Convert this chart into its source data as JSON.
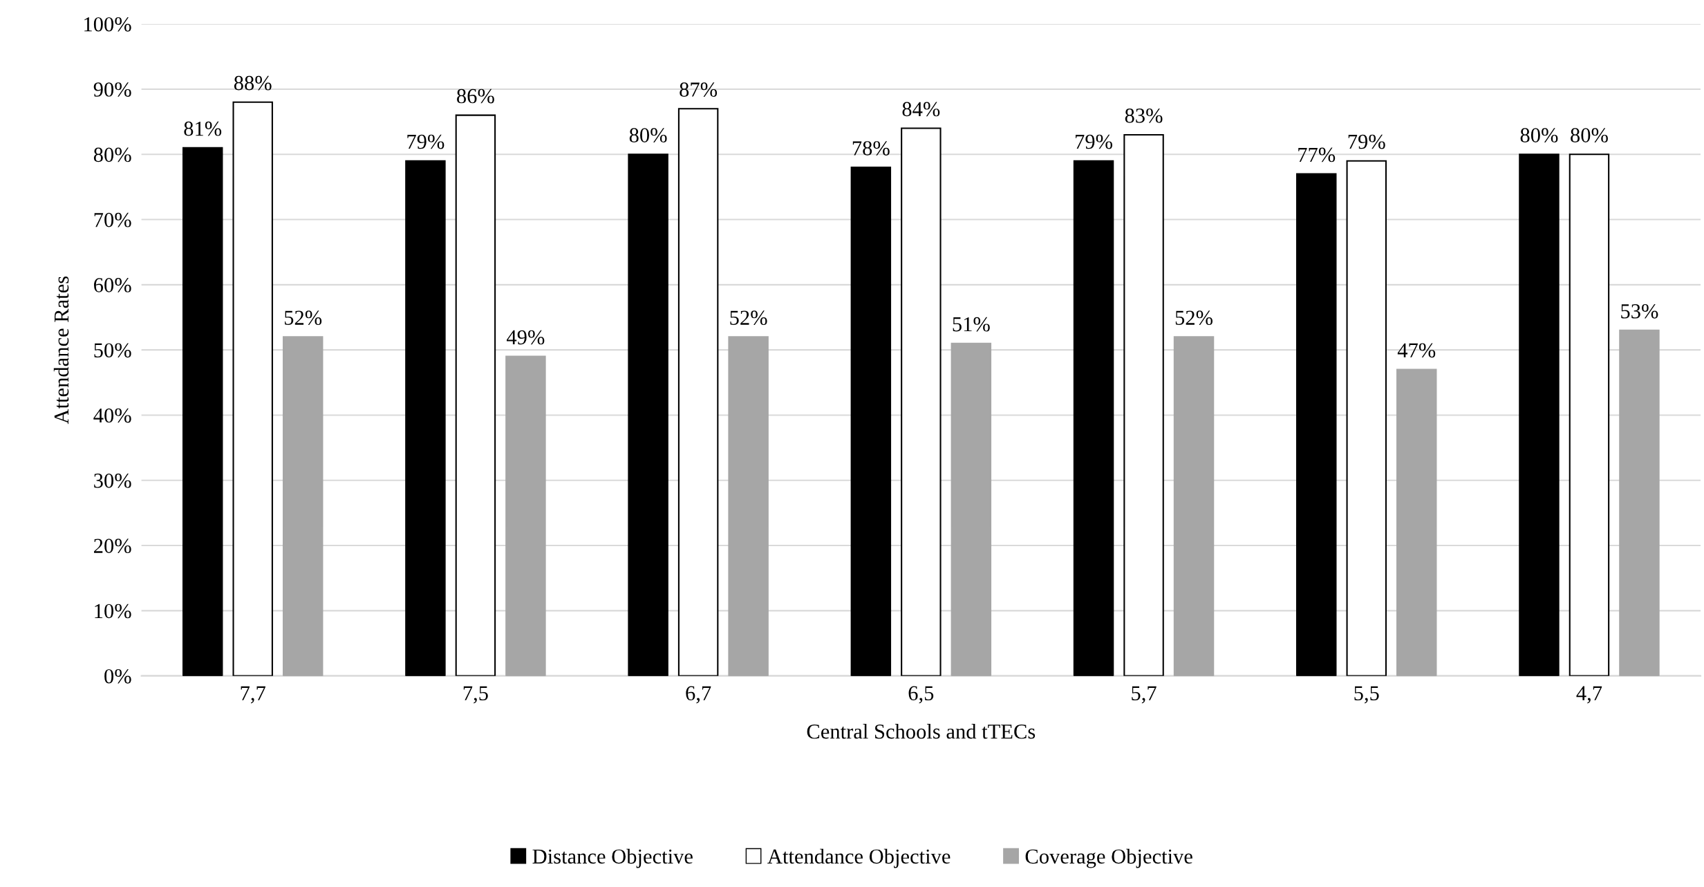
{
  "chart_data": {
    "type": "bar",
    "xlabel": "Central Schools and tTECs",
    "ylabel": "Attendance Rates",
    "categories": [
      "7,7",
      "7,5",
      "6,7",
      "6,5",
      "5,7",
      "5,5",
      "4,7"
    ],
    "series": [
      {
        "name": "Distance Objective",
        "color": "#000000",
        "values": [
          81,
          79,
          80,
          78,
          79,
          77,
          80
        ],
        "value_labels": [
          "81%",
          "79%",
          "80%",
          "78%",
          "79%",
          "77%",
          "80%"
        ]
      },
      {
        "name": "Attendance Objective",
        "color": "#ffffff",
        "values": [
          88,
          86,
          87,
          84,
          83,
          79,
          80
        ],
        "value_labels": [
          "88%",
          "86%",
          "87%",
          "84%",
          "83%",
          "79%",
          "80%"
        ]
      },
      {
        "name": "Coverage Objective",
        "color": "#a6a6a6",
        "values": [
          52,
          49,
          52,
          51,
          52,
          47,
          53
        ],
        "value_labels": [
          "52%",
          "49%",
          "52%",
          "51%",
          "52%",
          "47%",
          "53%"
        ]
      }
    ],
    "ylim": [
      0,
      100
    ],
    "yticks": [
      {
        "value": 0,
        "label": "0%"
      },
      {
        "value": 10,
        "label": "10%"
      },
      {
        "value": 20,
        "label": "20%"
      },
      {
        "value": 30,
        "label": "30%"
      },
      {
        "value": 40,
        "label": "40%"
      },
      {
        "value": 50,
        "label": "50%"
      },
      {
        "value": 60,
        "label": "60%"
      },
      {
        "value": 70,
        "label": "70%"
      },
      {
        "value": 80,
        "label": "80%"
      },
      {
        "value": 90,
        "label": "90%"
      },
      {
        "value": 100,
        "label": "100%"
      }
    ],
    "grid": "y",
    "legend": "bottom"
  }
}
